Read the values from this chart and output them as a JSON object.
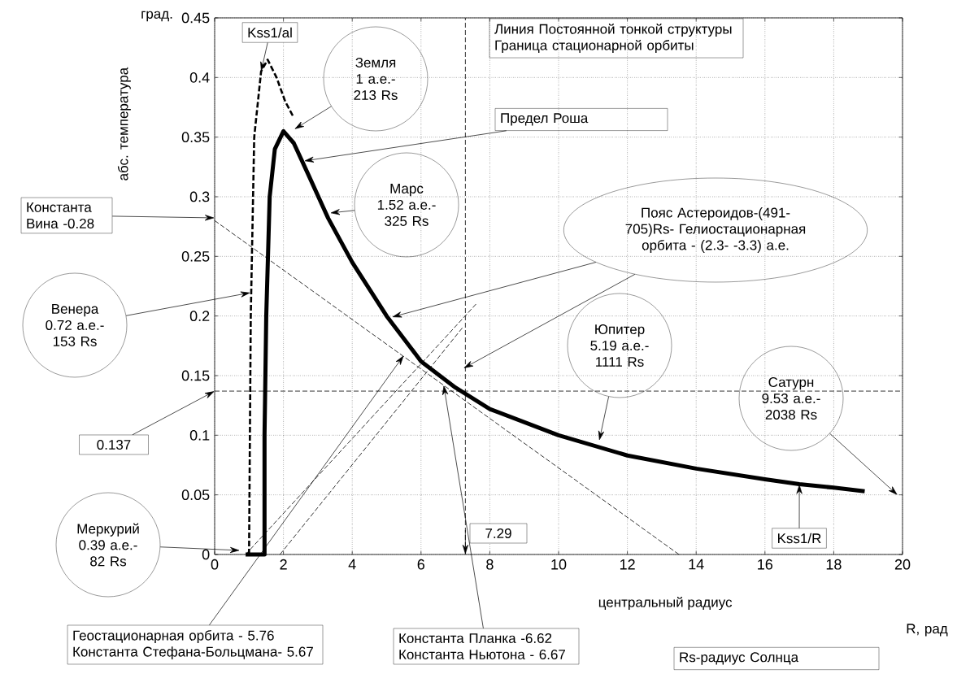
{
  "chart_data": {
    "type": "line",
    "xlabel": "центральный радиус",
    "ylabel": "абс. температура",
    "xlim": [
      0,
      20
    ],
    "ylim": [
      0,
      0.45
    ],
    "xticks": [
      0,
      2,
      4,
      6,
      8,
      10,
      12,
      14,
      16,
      18,
      20
    ],
    "yticks": [
      0,
      0.05,
      0.1,
      0.15,
      0.2,
      0.25,
      0.3,
      0.35,
      0.4,
      0.45
    ],
    "grid": true,
    "marker": "none",
    "series": [
      {
        "name": "Kss1/R",
        "color": "#000000",
        "line_style": "solid",
        "x": [
          0.9,
          1.45,
          1.45,
          1.5,
          1.6,
          1.75,
          2.0,
          2.3,
          2.7,
          3.3,
          4,
          5,
          6,
          7,
          8,
          10,
          12,
          14,
          16,
          17,
          18,
          18.9
        ],
        "values": [
          0,
          0,
          0.1,
          0.2,
          0.3,
          0.34,
          0.355,
          0.345,
          0.32,
          0.282,
          0.245,
          0.2,
          0.162,
          0.14,
          0.122,
          0.1,
          0.083,
          0.072,
          0.063,
          0.059,
          0.056,
          0.053
        ]
      },
      {
        "name": "Kss1/al",
        "color": "#000000",
        "line_style": "dashed",
        "x": [
          1.0,
          1.05,
          1.15,
          1.35,
          1.54,
          1.8,
          2.05,
          2.27
        ],
        "values": [
          0,
          0.2,
          0.35,
          0.405,
          0.415,
          0.4,
          0.38,
          0.368
        ]
      },
      {
        "color": "#000000",
        "line_style": "dashed",
        "x": [
          0,
          13.5
        ],
        "values": [
          0.28,
          0
        ]
      },
      {
        "color": "#000000",
        "line_style": "dashed",
        "x": [
          0.9,
          7.6
        ],
        "values": [
          0,
          0.21
        ]
      },
      {
        "color": "#000000",
        "line_style": "dashed",
        "x": [
          1.9,
          7.2
        ],
        "values": [
          0,
          0.19
        ]
      }
    ],
    "ref_lines": [
      {
        "axis": "y",
        "value": 0.137,
        "label": "0.137",
        "line_style": "dashed"
      },
      {
        "axis": "x",
        "value": 7.29,
        "label": "7.29",
        "line_style": "dashed"
      }
    ],
    "annotations": [
      "Земля 1 а.е.- 213 Rs",
      {
        "text": "Предел Роша",
        "x": 2.6,
        "y": 0.33
      },
      "Марс 1.52 а.е.- 325 Rs",
      "Константа Вина -0.28",
      "Венера 0.72 а.е.- 153 Rs",
      "Пояс Астероидов-(491-705)Rs- Гелиостационарная орбита - (2.3- -3.3) а.е.",
      "Юпитер 5.19 а.е.- 1111 Rs",
      "Сатурн 9.53 а.е.- 2038 Rs",
      "Меркурий 0.39 а.е.- 82 Rs",
      {
        "text": "Геостационарная орбита - 5.76 Константа Стефана-Больцмана- 5.67",
        "x": 5.5,
        "y": 0.167
      },
      {
        "text": "Константа Планка -6.62 Константа Ньютона - 6.67",
        "x": 6.66,
        "y": 0.142
      },
      "Линия Постоянной тонкой структуры Граница стационарной орбиты",
      "Rs-радиус Солнца",
      "град.",
      "R, рад"
    ]
  }
}
